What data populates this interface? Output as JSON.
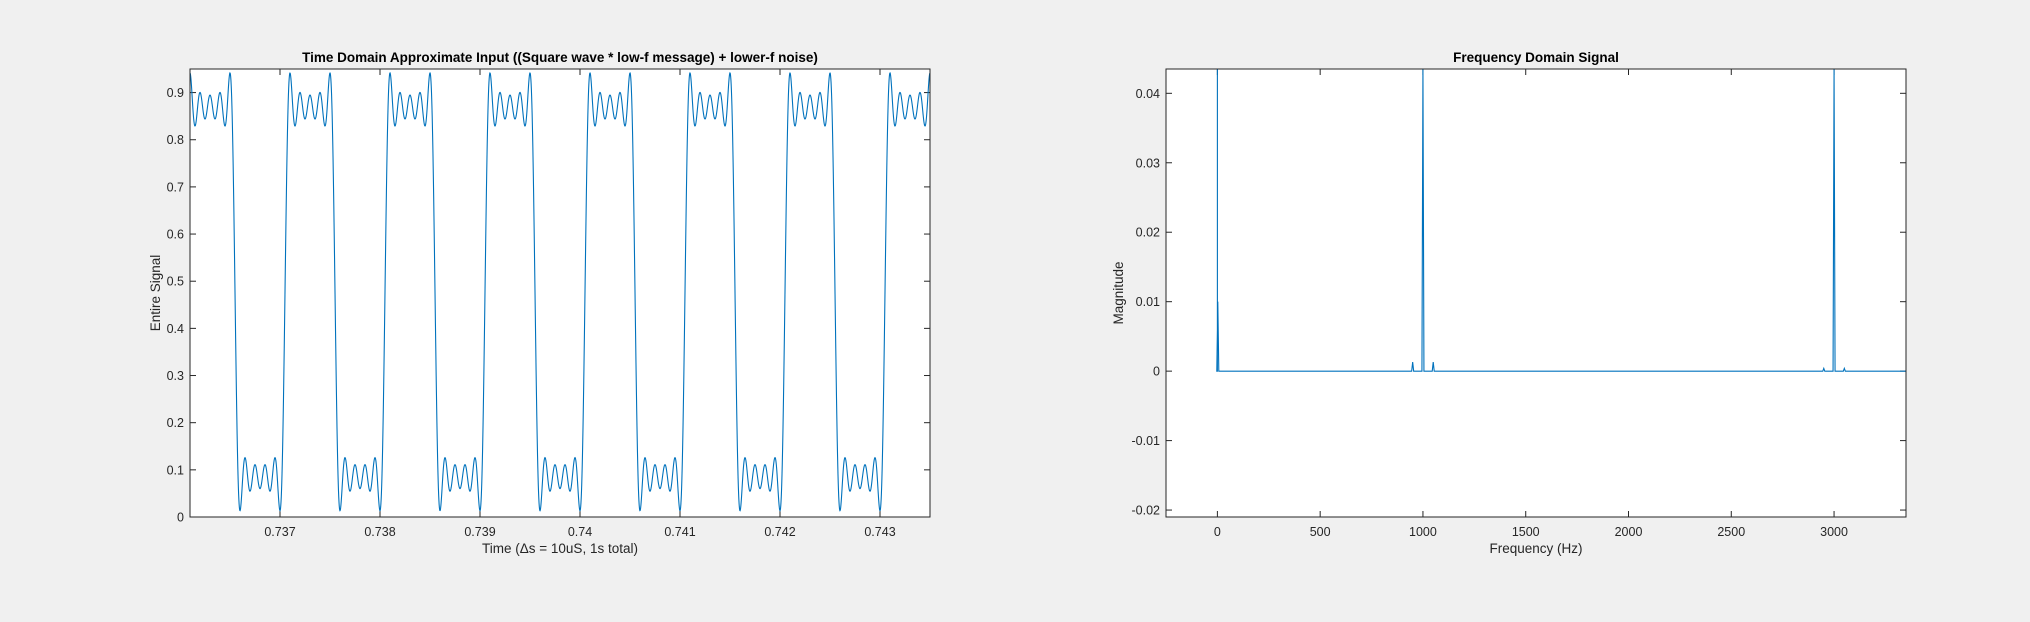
{
  "chart_data": [
    {
      "type": "line",
      "title": "Time Domain Approximate Input ((Square wave * low-f message) + lower-f noise)",
      "xlabel": "Time (Δs = 10uS, 1s total)",
      "ylabel": "Entire Signal",
      "xlim": [
        0.7361,
        0.7435
      ],
      "ylim": [
        0,
        0.95
      ],
      "xticks": [
        0.737,
        0.738,
        0.739,
        0.74,
        0.741,
        0.742,
        0.743
      ],
      "xtick_labels": [
        "0.737",
        "0.738",
        "0.739",
        "0.74",
        "0.741",
        "0.742",
        "0.743"
      ],
      "yticks": [
        0,
        0.1,
        0.2,
        0.3,
        0.4,
        0.5,
        0.6,
        0.7,
        0.8,
        0.9
      ],
      "ytick_labels": [
        "0",
        "0.1",
        "0.2",
        "0.3",
        "0.4",
        "0.5",
        "0.6",
        "0.7",
        "0.8",
        "0.9"
      ],
      "grid": false,
      "color": "#0072bd",
      "signal": {
        "description_note": "square wave with ripple",
        "period": 0.001,
        "first_rising_edge": 0.73605,
        "duty_cycle": 0.5,
        "high_level": 0.87,
        "low_level": 0.085,
        "ripple_amplitude": 0.03,
        "overshoot_peak_high": 0.94,
        "undershoot_trough_low": 0.025
      }
    },
    {
      "type": "line",
      "title": "Frequency Domain Signal",
      "xlabel": "Frequency (Hz)",
      "ylabel": "Magnitude",
      "xlim": [
        -250,
        3350
      ],
      "ylim": [
        -0.021,
        0.0435
      ],
      "xticks": [
        0,
        500,
        1000,
        1500,
        2000,
        2500,
        3000
      ],
      "xtick_labels": [
        "0",
        "500",
        "1000",
        "1500",
        "2000",
        "2500",
        "3000"
      ],
      "yticks": [
        -0.02,
        -0.01,
        0,
        0.01,
        0.02,
        0.03,
        0.04
      ],
      "ytick_labels": [
        "-0.02",
        "-0.01",
        "0",
        "0.01",
        "0.02",
        "0.03",
        "0.04"
      ],
      "grid": false,
      "color": "#0072bd",
      "peaks": [
        {
          "x": 0,
          "y": 0.0435
        },
        {
          "x": 2,
          "y": 0.01
        },
        {
          "x": 950,
          "y": 0.0013
        },
        {
          "x": 1000,
          "y": 0.0435
        },
        {
          "x": 1050,
          "y": 0.0013
        },
        {
          "x": 2950,
          "y": 0.0004
        },
        {
          "x": 3000,
          "y": 0.0435
        },
        {
          "x": 3050,
          "y": 0.0004
        }
      ]
    }
  ]
}
